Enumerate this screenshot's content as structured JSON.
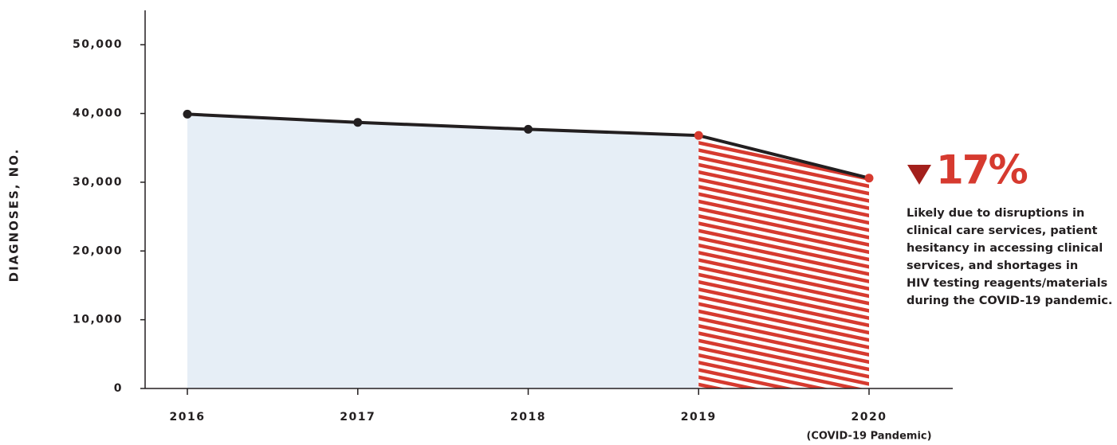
{
  "chart_data": {
    "type": "line",
    "ylabel": "DIAGNOSES, NO.",
    "categories": [
      "2016",
      "2017",
      "2018",
      "2019",
      "2020"
    ],
    "x_sublabel": "(COVID-19 Pandemic)",
    "values": [
      39900,
      38700,
      37700,
      36800,
      30600
    ],
    "line_color": "#231f20",
    "fill_color": "#e6eef6",
    "hatch_color": "#d63a2f",
    "hatch_from_index": 3,
    "point_colors": [
      "#231f20",
      "#231f20",
      "#231f20",
      "#d63a2f",
      "#d63a2f"
    ],
    "ylim": [
      0,
      55000
    ],
    "yticks": [
      0,
      {
        "value": 10000,
        "label": "10,000"
      },
      {
        "value": 20000,
        "label": "20,000"
      },
      {
        "value": 30000,
        "label": "30,000"
      },
      {
        "value": 40000,
        "label": "40,000"
      },
      {
        "value": 50000,
        "label": "50,000"
      }
    ],
    "annotation": {
      "change": "17%",
      "text": [
        "Likely due to disruptions in",
        "clinical care services, patient",
        "hesitancy in accessing clinical",
        "services, and shortages in",
        "HIV testing reagents/materials",
        "during the COVID-19 pandemic."
      ]
    }
  }
}
